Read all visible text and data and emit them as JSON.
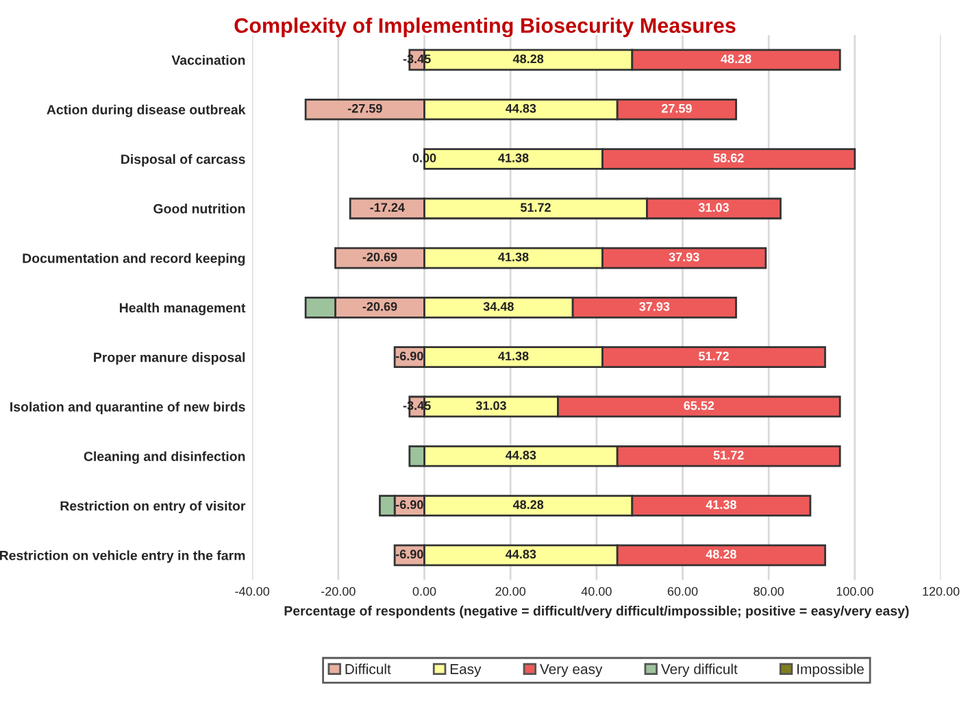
{
  "chart_data": {
    "type": "bar",
    "orientation": "horizontal",
    "stacked": true,
    "title": "Complexity of Implementing Biosecurity Measures",
    "xlabel": "Percentage of respondents (negative = difficult/very difficult/impossible; positive = easy/very easy)",
    "categories": [
      "Vaccination",
      "Action during disease outbreak",
      "Disposal of carcass",
      "Good nutrition",
      "Documentation and record keeping",
      "Health management",
      "Proper manure disposal",
      "Isolation and quarantine of new birds",
      "Cleaning and disinfection",
      "Restriction on entry of visitor",
      "Restriction on vehicle entry in the farm"
    ],
    "series": [
      {
        "name": "Difficult",
        "color": "#e8b0a0",
        "values": [
          -3.45,
          -27.59,
          0,
          -17.24,
          -20.69,
          -20.69,
          -6.9,
          -3.45,
          0,
          -6.9,
          -6.9
        ],
        "value_labels": [
          "-3.45",
          "-27.59",
          "0.00",
          "-17.24",
          "-20.69",
          "-20.69",
          "-6.90",
          "-3.45",
          null,
          "-6.90",
          "-6.90"
        ]
      },
      {
        "name": "Easy",
        "color": "#ffff99",
        "values": [
          48.28,
          44.83,
          41.38,
          51.72,
          41.38,
          34.48,
          41.38,
          31.03,
          44.83,
          48.28,
          44.83
        ],
        "value_labels": [
          "48.28",
          "44.83",
          "41.38",
          "51.72",
          "41.38",
          "34.48",
          "41.38",
          "31.03",
          "44.83",
          "48.28",
          "44.83"
        ]
      },
      {
        "name": "Very easy",
        "color": "#ee5a5a",
        "values": [
          48.28,
          27.59,
          58.62,
          31.03,
          37.93,
          37.93,
          51.72,
          65.52,
          51.72,
          41.38,
          48.28
        ],
        "value_labels": [
          "48.28",
          "27.59",
          "58.62",
          "31.03",
          "37.93",
          "37.93",
          "51.72",
          "65.52",
          "51.72",
          "41.38",
          "48.28"
        ]
      },
      {
        "name": "Very difficult",
        "color": "#9dc39d",
        "values": [
          0,
          0,
          0,
          0,
          0,
          -6.9,
          0,
          0,
          -3.45,
          -3.45,
          0
        ]
      },
      {
        "name": "Impossible",
        "color": "#7f7f20",
        "values": [
          0,
          0,
          0,
          0,
          0,
          0,
          0,
          0,
          0,
          0,
          0
        ]
      }
    ],
    "xlim": [
      -40,
      120
    ],
    "xticks": [
      {
        "value": -40,
        "label": "-40.00"
      },
      {
        "value": -20,
        "label": "-20.00"
      },
      {
        "value": 0,
        "label": "0.00"
      },
      {
        "value": 20,
        "label": "20.00"
      },
      {
        "value": 40,
        "label": "40.00"
      },
      {
        "value": 60,
        "label": "60.00"
      },
      {
        "value": 80,
        "label": "80.00"
      },
      {
        "value": 100,
        "label": "100.00"
      },
      {
        "value": 120,
        "label": "120.00"
      }
    ],
    "grid": "x",
    "legend": "bottom"
  }
}
